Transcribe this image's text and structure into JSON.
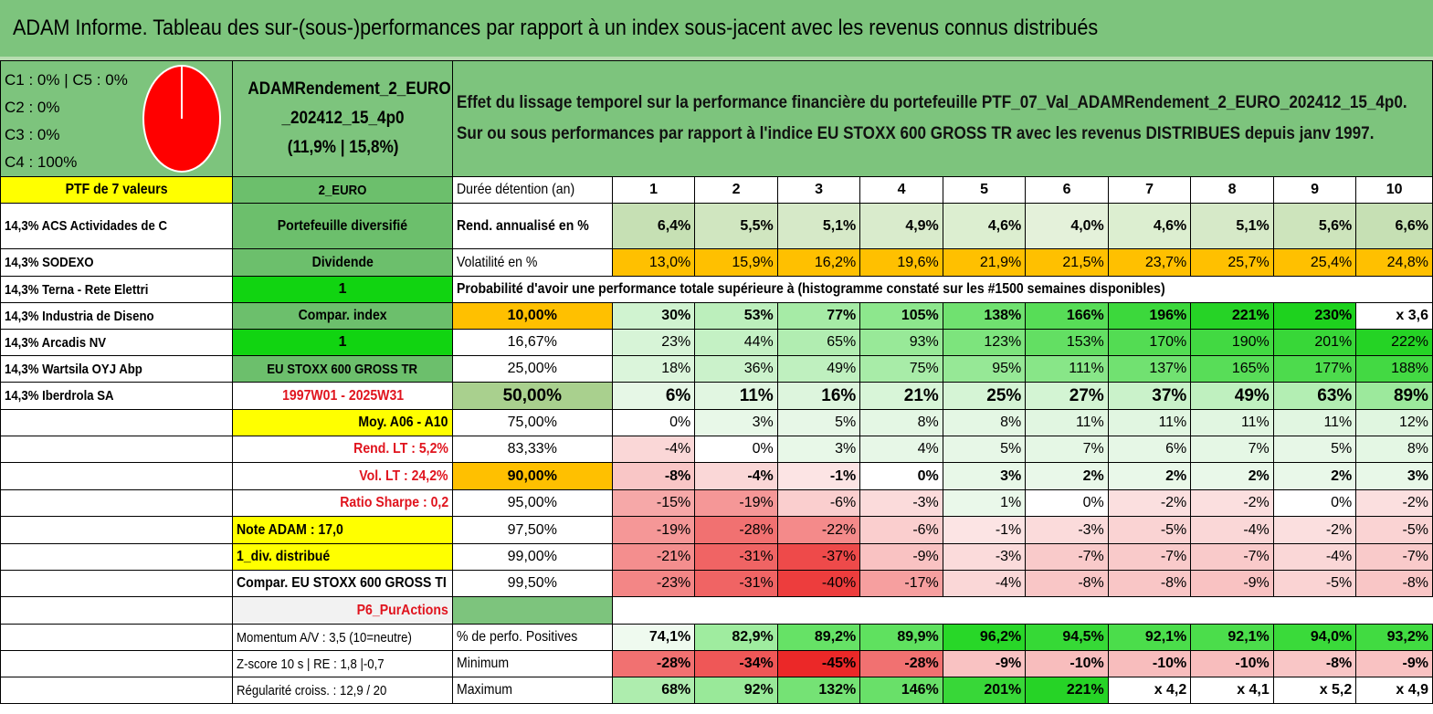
{
  "title": "ADAM Informe. Tableau des sur-(sous-)performances par rapport à un index sous-jacent avec les revenus connus distribués",
  "colors": {
    "header_green": "#7dc47d",
    "yellow": "#ffff00",
    "orange": "#ffc000",
    "bright_green": "#11d411",
    "red_text": "#e0141e",
    "pie_red": "#ff0000"
  },
  "classes": {
    "c1c5": "C1 : 0% | C5 : 0%",
    "c2": "C2 : 0%",
    "c3": "C3 : 0%",
    "c4": "C4 : 100%",
    "pie_values": [
      0,
      0,
      0,
      100,
      0
    ]
  },
  "fund": {
    "name_line1": "ADAMRendement_2_EURO",
    "name_line2": "_202412_15_4p0",
    "name_line3": "(11,9% | 15,8%)"
  },
  "description": {
    "line1": "Effet du lissage temporel sur la performance financière du portefeuille PTF_07_Val_ADAMRendement_2_EURO_202412_15_4p0.",
    "line2": "Sur ou sous performances par rapport à l'indice EU STOXX 600 GROSS TR avec les revenus DISTRIBUES depuis janv 1997."
  },
  "left_col": {
    "header": "PTF de 7 valeurs",
    "holdings": [
      "14,3% ACS Actividades de C",
      "14,3% SODEXO",
      "14,3% Terna - Rete Elettri",
      "14,3% Industria de Diseno",
      "14,3% Arcadis NV",
      "14,3% Wartsila OYJ Abp",
      "14,3% Iberdrola SA"
    ]
  },
  "mid_col": {
    "header": "2_EURO",
    "diversified": "Portefeuille diversifié",
    "dividend": "Dividende",
    "one_a": "1",
    "compar_index": "Compar. index",
    "one_b": "1",
    "index_name": "EU STOXX 600 GROSS TR",
    "period": "1997W01 - 2025W31",
    "moy": "Moy. A06 - A10",
    "rend_lt": "Rend. LT : 5,2%",
    "vol_lt": "Vol. LT : 24,2%",
    "sharpe": "Ratio Sharpe : 0,2",
    "note": "Note ADAM : 17,0",
    "div": "1_div. distribué",
    "compar": "Compar. EU STOXX 600 GROSS TI",
    "p6": "P6_PurActions",
    "momentum": "Momentum A/V : 3,5 (10=neutre)",
    "zscore": "Z-score 10 s | RE : 1,8 |-0,7",
    "regularite": "Régularité croiss. : 12,9 / 20"
  },
  "table": {
    "duration_label": "Durée détention (an)",
    "years": [
      "1",
      "2",
      "3",
      "4",
      "5",
      "6",
      "7",
      "8",
      "9",
      "10"
    ],
    "rend_label": "Rend. annualisé en %",
    "rend": [
      "6,4%",
      "5,5%",
      "5,1%",
      "4,9%",
      "4,6%",
      "4,0%",
      "4,6%",
      "5,1%",
      "5,6%",
      "6,6%"
    ],
    "vol_label": "Volatilité en %",
    "vol": [
      "13,0%",
      "15,9%",
      "16,2%",
      "19,6%",
      "21,9%",
      "21,5%",
      "23,7%",
      "25,7%",
      "25,4%",
      "24,8%"
    ],
    "prob_title": "Probabilité d'avoir une performance totale supérieure à (histogramme constaté sur les #1500 semaines disponibles)",
    "quantiles": [
      {
        "q": "10,00%",
        "vals": [
          "30%",
          "53%",
          "77%",
          "105%",
          "138%",
          "166%",
          "196%",
          "221%",
          "230%",
          "x 3,6"
        ]
      },
      {
        "q": "16,67%",
        "vals": [
          "23%",
          "44%",
          "65%",
          "93%",
          "123%",
          "153%",
          "170%",
          "190%",
          "201%",
          "222%"
        ]
      },
      {
        "q": "25,00%",
        "vals": [
          "18%",
          "36%",
          "49%",
          "75%",
          "95%",
          "111%",
          "137%",
          "165%",
          "177%",
          "188%"
        ]
      },
      {
        "q": "50,00%",
        "vals": [
          "6%",
          "11%",
          "16%",
          "21%",
          "25%",
          "27%",
          "37%",
          "49%",
          "63%",
          "89%"
        ]
      },
      {
        "q": "75,00%",
        "vals": [
          "0%",
          "3%",
          "5%",
          "8%",
          "8%",
          "11%",
          "11%",
          "11%",
          "11%",
          "12%"
        ]
      },
      {
        "q": "83,33%",
        "vals": [
          "-4%",
          "0%",
          "3%",
          "4%",
          "5%",
          "7%",
          "6%",
          "7%",
          "5%",
          "8%"
        ]
      },
      {
        "q": "90,00%",
        "vals": [
          "-8%",
          "-4%",
          "-1%",
          "0%",
          "3%",
          "2%",
          "2%",
          "2%",
          "2%",
          "3%"
        ]
      },
      {
        "q": "95,00%",
        "vals": [
          "-15%",
          "-19%",
          "-6%",
          "-3%",
          "1%",
          "0%",
          "-2%",
          "-2%",
          "0%",
          "-2%"
        ]
      },
      {
        "q": "97,50%",
        "vals": [
          "-19%",
          "-28%",
          "-22%",
          "-6%",
          "-1%",
          "-3%",
          "-5%",
          "-4%",
          "-2%",
          "-5%"
        ]
      },
      {
        "q": "99,00%",
        "vals": [
          "-21%",
          "-31%",
          "-37%",
          "-9%",
          "-3%",
          "-7%",
          "-7%",
          "-7%",
          "-4%",
          "-7%"
        ]
      },
      {
        "q": "99,50%",
        "vals": [
          "-23%",
          "-31%",
          "-40%",
          "-17%",
          "-4%",
          "-8%",
          "-8%",
          "-9%",
          "-5%",
          "-8%"
        ]
      }
    ],
    "pos_label": "% de perfo. Positives",
    "pos": [
      "74,1%",
      "82,9%",
      "89,2%",
      "89,9%",
      "96,2%",
      "94,5%",
      "92,1%",
      "92,1%",
      "94,0%",
      "93,2%"
    ],
    "min_label": "Minimum",
    "min": [
      "-28%",
      "-34%",
      "-45%",
      "-28%",
      "-9%",
      "-10%",
      "-10%",
      "-10%",
      "-8%",
      "-9%"
    ],
    "max_label": "Maximum",
    "max": [
      "68%",
      "92%",
      "132%",
      "146%",
      "201%",
      "221%",
      "x 4,2",
      "x 4,1",
      "x 5,2",
      "x 4,9"
    ]
  }
}
